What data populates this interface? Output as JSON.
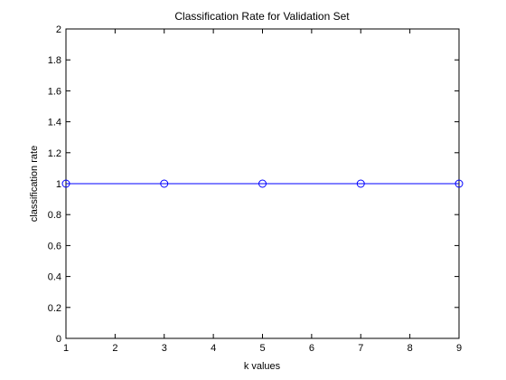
{
  "chart_data": {
    "type": "line",
    "title": "Classification Rate for Validation Set",
    "xlabel": "k values",
    "ylabel": "classification rate",
    "xlim": [
      1,
      9
    ],
    "ylim": [
      0,
      2
    ],
    "xticks": [
      1,
      2,
      3,
      4,
      5,
      6,
      7,
      8,
      9
    ],
    "xtick_labels": [
      "1",
      "2",
      "3",
      "4",
      "5",
      "6",
      "7",
      "8",
      "9"
    ],
    "yticks": [
      0,
      0.2,
      0.4,
      0.6,
      0.8,
      1,
      1.2,
      1.4,
      1.6,
      1.8,
      2
    ],
    "ytick_labels": [
      "0",
      "0.2",
      "0.4",
      "0.6",
      "0.8",
      "1",
      "1.2",
      "1.4",
      "1.6",
      "1.8",
      "2"
    ],
    "grid": false,
    "series": [
      {
        "x": [
          1,
          3,
          5,
          7,
          9
        ],
        "y": [
          1,
          1,
          1,
          1,
          1
        ],
        "color": "#0000ff",
        "marker": "circle"
      }
    ]
  }
}
